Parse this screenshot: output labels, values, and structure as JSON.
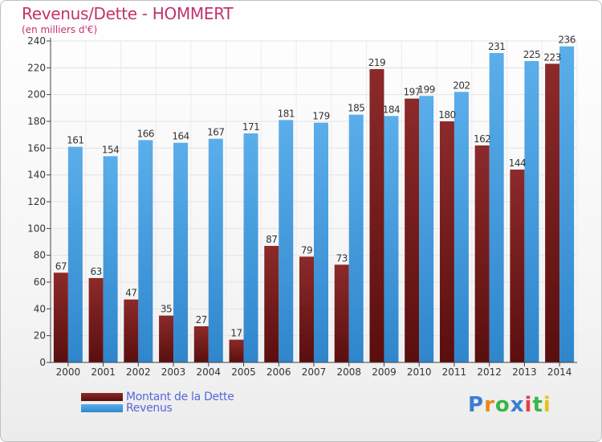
{
  "header": {
    "title": "Revenus/Dette - HOMMERT",
    "subtitle": "(en milliers d'€)"
  },
  "colors": {
    "dette": "#7a1f1f",
    "revenus": "#4aa3e0",
    "title": "#c2326b",
    "legend_text": "#5566dd"
  },
  "chart_data": {
    "type": "bar",
    "title": "Revenus/Dette - HOMMERT",
    "subtitle": "(en milliers d'€)",
    "categories": [
      "2000",
      "2001",
      "2002",
      "2003",
      "2004",
      "2005",
      "2006",
      "2007",
      "2008",
      "2009",
      "2010",
      "2011",
      "2012",
      "2013",
      "2014"
    ],
    "series": [
      {
        "name": "Montant de la Dette",
        "values": [
          67,
          63,
          47,
          35,
          27,
          17,
          87,
          79,
          73,
          219,
          197,
          180,
          162,
          144,
          223
        ]
      },
      {
        "name": "Revenus",
        "values": [
          161,
          154,
          166,
          164,
          167,
          171,
          181,
          179,
          185,
          184,
          199,
          202,
          231,
          225,
          236
        ]
      }
    ],
    "ylim": [
      0,
      240
    ],
    "yticks": [
      0,
      20,
      40,
      60,
      80,
      100,
      120,
      140,
      160,
      180,
      200,
      220,
      240
    ],
    "grid": true,
    "legend": "bottom-left"
  },
  "legend": {
    "items": [
      "Montant de la Dette",
      "Revenus"
    ]
  },
  "logo": {
    "text": "Proxiti",
    "letters": [
      "P",
      "r",
      "o",
      "x",
      "i",
      "t",
      "i"
    ],
    "letter_colors": [
      "#3a7fd0",
      "#e88a1a",
      "#3ab54a",
      "#3a7fd0",
      "#e84040",
      "#3ab54a",
      "#e8c21a"
    ]
  }
}
